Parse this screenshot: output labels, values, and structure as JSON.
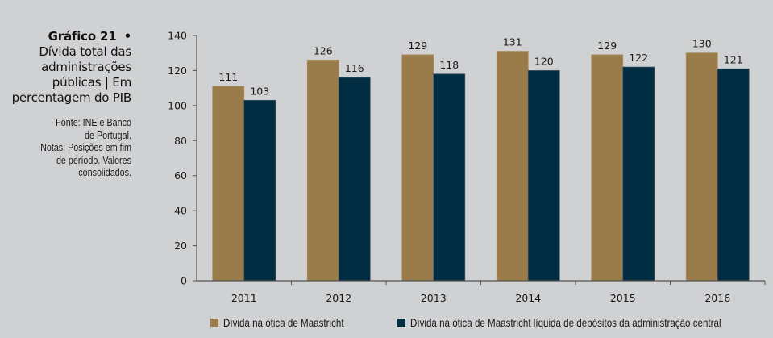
{
  "sidebar": {
    "figure_number": "Gráfico 21",
    "bullet": "•",
    "title_lines": [
      "Dívida total das",
      "administrações",
      "públicas | Em",
      "percentagem do PIB"
    ],
    "note_lines": [
      "Fonte: INE e Banco",
      "de Portugal.",
      "Notas: Posições em fim",
      "de período. Valores",
      "consolidados."
    ]
  },
  "chart_data": {
    "type": "bar",
    "title": "Gráfico 21 • Dívida total das administrações públicas | Em percentagem do PIB",
    "xlabel": "",
    "ylabel": "",
    "categories": [
      "2011",
      "2012",
      "2013",
      "2014",
      "2015",
      "2016"
    ],
    "series": [
      {
        "name": "Dívida na ótica de Maastricht",
        "color": "#9a7b4a",
        "values": [
          111,
          126,
          129,
          131,
          129,
          130
        ]
      },
      {
        "name": "Dívida na ótica de Maastricht líquida de depósitos da administração central",
        "color": "#012d43",
        "values": [
          103,
          116,
          118,
          120,
          122,
          121
        ]
      }
    ],
    "ylim": [
      0,
      140
    ],
    "yticks": [
      0,
      20,
      40,
      60,
      80,
      100,
      120,
      140
    ],
    "grid": false,
    "legend": "bottom",
    "data_labels": true
  }
}
